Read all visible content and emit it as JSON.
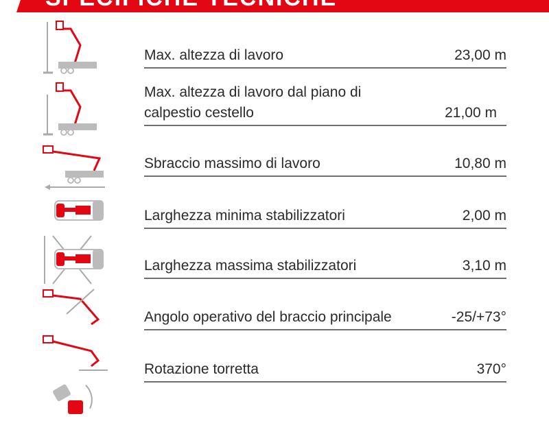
{
  "header": {
    "title": "SPECIFICHE TECNICHE",
    "color": "#e30613"
  },
  "specs": [
    {
      "label": "Max. altezza di lavoro",
      "value": "23,00 m",
      "icon": "working-height-icon"
    },
    {
      "label": "Max. altezza di lavoro dal piano di calpestio cestello",
      "value": "21,00 m",
      "icon": "platform-floor-height-icon"
    },
    {
      "label": "Sbraccio massimo di lavoro",
      "value": "10,80 m",
      "icon": "horizontal-outreach-icon"
    },
    {
      "label": "Larghezza minima stabilizzatori",
      "value": "2,00 m",
      "icon": "min-outrigger-width-icon"
    },
    {
      "label": "Larghezza massima stabilizzatori",
      "value": "3,10 m",
      "icon": "max-outrigger-width-icon"
    },
    {
      "label": "Angolo operativo del braccio principale",
      "value": "-25/+73°",
      "icon": "boom-angle-icon"
    },
    {
      "label": "Rotazione torretta",
      "value": "370°",
      "icon": "turret-rotation-icon"
    }
  ]
}
